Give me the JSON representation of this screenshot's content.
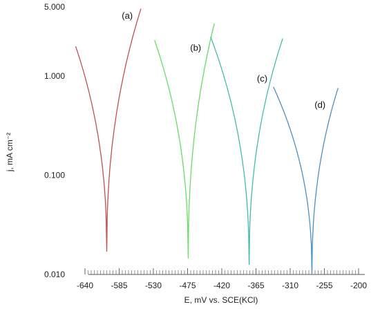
{
  "chart_data": {
    "type": "line",
    "xlabel": "E, mV vs. SCE(KCl)",
    "ylabel": "j, mA cm⁻²",
    "y_scale": "log",
    "xlim": [
      -660,
      -190
    ],
    "ylim": [
      0.01,
      5.0
    ],
    "x_ticks": [
      "-640",
      "-585",
      "-530",
      "-475",
      "-420",
      "-365",
      "-310",
      "-255",
      "-200"
    ],
    "x_tick_values": [
      -640,
      -585,
      -530,
      -475,
      -420,
      -365,
      -310,
      -255,
      -200
    ],
    "y_ticks": [
      "0.010",
      "0.100",
      "1.000",
      "5.000"
    ],
    "y_tick_values": [
      0.01,
      0.1,
      1.0,
      5.0
    ],
    "grid": false,
    "series": [
      {
        "label": "(a)",
        "color": "#c0504d",
        "E_corr": -605,
        "j_min": 0.017,
        "cathodic_start": [
          -655,
          2.0
        ],
        "anodic_end": [
          -550,
          4.8
        ],
        "label_at": [
          -572,
          3.8
        ]
      },
      {
        "label": "(b)",
        "color": "#66dd66",
        "E_corr": -474,
        "j_min": 0.0145,
        "cathodic_start": [
          -528,
          2.3
        ],
        "anodic_end": [
          -432,
          3.4
        ],
        "label_at": [
          -462,
          1.8
        ]
      },
      {
        "label": "(c)",
        "color": "#44bbaa",
        "E_corr": -376,
        "j_min": 0.0125,
        "cathodic_start": [
          -438,
          2.5
        ],
        "anodic_end": [
          -322,
          2.4
        ],
        "label_at": [
          -355,
          0.88
        ]
      },
      {
        "label": "(d)",
        "color": "#4a90c0",
        "E_corr": -275,
        "j_min": 0.0102,
        "cathodic_start": [
          -337,
          0.78
        ],
        "anodic_end": [
          -233,
          0.76
        ],
        "label_at": [
          -262,
          0.48
        ]
      }
    ]
  }
}
